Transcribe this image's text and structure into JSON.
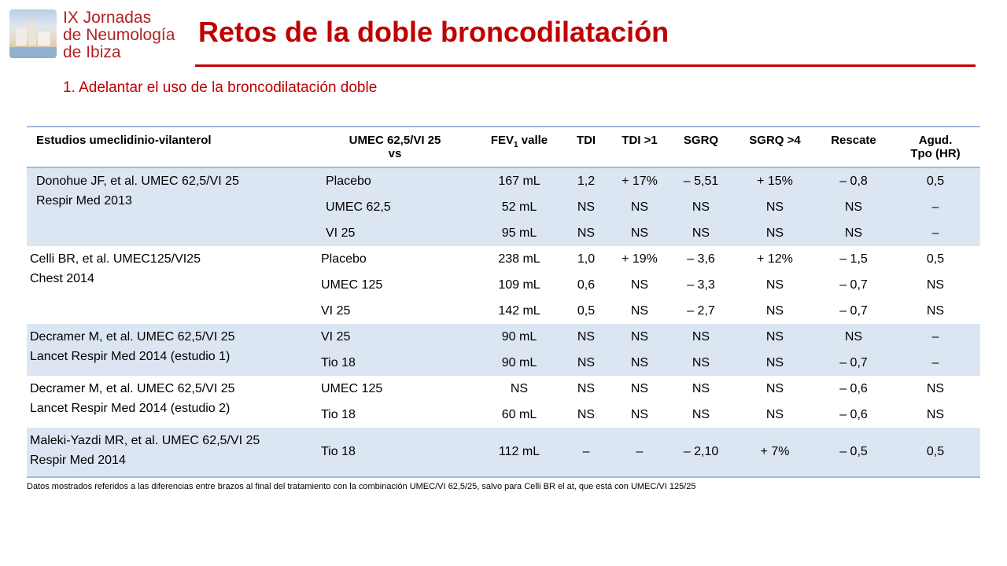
{
  "logo": {
    "lines": [
      "IX Jornadas",
      "de Neumología",
      "de Ibiza"
    ]
  },
  "title": "Retos de la doble broncodilatación",
  "subtitle": "1. Adelantar el uso de la broncodilatación doble",
  "table": {
    "headers": {
      "study": "Estudios umeclidinio-vilanterol",
      "umec_line1": "UMEC 62,5/VI 25",
      "umec_line2": "vs",
      "fev_main": "FEV",
      "fev_sub": "1",
      "fev_rest": " valle",
      "tdi": "TDI",
      "tdi1": "TDI >1",
      "sgrq": "SGRQ",
      "sgrq4": "SGRQ >4",
      "rescate": "Rescate",
      "agud_line1": "Agud.",
      "agud_line2": "Tpo (HR)"
    },
    "groups": [
      {
        "study_line1": "Donohue JF, et al. UMEC 62,5/VI 25",
        "study_line2": "Respir Med 2013",
        "rows": [
          {
            "arm": "Placebo",
            "fev": "167 mL",
            "tdi": "1,2",
            "tdi1": "+ 17%",
            "sgrq": "– 5,51",
            "sgrq4": "+ 15%",
            "rescate": "– 0,8",
            "agud": "0,5"
          },
          {
            "arm": "UMEC 62,5",
            "fev": "52 mL",
            "tdi": "NS",
            "tdi1": "NS",
            "sgrq": "NS",
            "sgrq4": "NS",
            "rescate": "NS",
            "agud": "–"
          },
          {
            "arm": "VI 25",
            "fev": "95 mL",
            "tdi": "NS",
            "tdi1": "NS",
            "sgrq": "NS",
            "sgrq4": "NS",
            "rescate": "NS",
            "agud": "–"
          }
        ]
      },
      {
        "study_line1": "Celli BR, et al. UMEC125/VI25",
        "study_line2": "Chest 2014",
        "rows": [
          {
            "arm": "Placebo",
            "fev": "238 mL",
            "tdi": "1,0",
            "tdi1": "+ 19%",
            "sgrq": "– 3,6",
            "sgrq4": "+ 12%",
            "rescate": "– 1,5",
            "agud": "0,5"
          },
          {
            "arm": "UMEC 125",
            "fev": "109 mL",
            "tdi": "0,6",
            "tdi1": "NS",
            "sgrq": "– 3,3",
            "sgrq4": "NS",
            "rescate": "– 0,7",
            "agud": "NS"
          },
          {
            "arm": "VI 25",
            "fev": "142 mL",
            "tdi": "0,5",
            "tdi1": "NS",
            "sgrq": "– 2,7",
            "sgrq4": "NS",
            "rescate": "– 0,7",
            "agud": "NS"
          }
        ]
      },
      {
        "study_line1": "Decramer M, et al. UMEC 62,5/VI 25",
        "study_line2": "Lancet Respir Med 2014 (estudio 1)",
        "rows": [
          {
            "arm": "VI 25",
            "fev": "90 mL",
            "tdi": "NS",
            "tdi1": "NS",
            "sgrq": "NS",
            "sgrq4": "NS",
            "rescate": "NS",
            "agud": "–"
          },
          {
            "arm": "Tio 18",
            "fev": "90 mL",
            "tdi": "NS",
            "tdi1": "NS",
            "sgrq": "NS",
            "sgrq4": "NS",
            "rescate": "– 0,7",
            "agud": "–"
          }
        ]
      },
      {
        "study_line1": "Decramer M, et al. UMEC 62,5/VI 25",
        "study_line2": "Lancet Respir Med 2014 (estudio 2)",
        "rows": [
          {
            "arm": "UMEC 125",
            "fev": "NS",
            "tdi": "NS",
            "tdi1": "NS",
            "sgrq": "NS",
            "sgrq4": "NS",
            "rescate": "– 0,6",
            "agud": "NS"
          },
          {
            "arm": "Tio 18",
            "fev": "60 mL",
            "tdi": "NS",
            "tdi1": "NS",
            "sgrq": "NS",
            "sgrq4": "NS",
            "rescate": "– 0,6",
            "agud": "NS"
          }
        ]
      },
      {
        "study_line1": "Maleki-Yazdi MR, et al. UMEC 62,5/VI 25",
        "study_line2": "Respir Med 2014",
        "rows": [
          {
            "arm": "Tio 18",
            "fev": "112 mL",
            "tdi": "–",
            "tdi1": "–",
            "sgrq": "– 2,10",
            "sgrq4": "+ 7%",
            "rescate": "– 0,5",
            "agud": "0,5"
          }
        ]
      }
    ]
  },
  "footnote": "Datos mostrados referidos a las diferencias entre brazos al final del tratamiento con la combinación UMEC/VI 62,5/25, salvo para Celli BR el at, que está con UMEC/VI 125/25",
  "colors": {
    "accent_red": "#c00000",
    "row_shade": "#dce6f3",
    "table_border": "#9ebbde"
  }
}
